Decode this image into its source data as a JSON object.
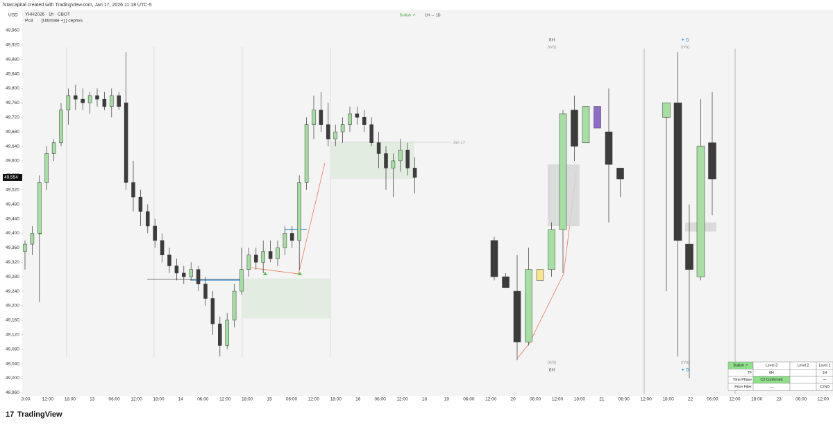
{
  "header": {
    "credit": "fstarcapital created with TradingView.com, Jan 17, 2026 11:18 UTC-5",
    "currency": "USD",
    "symbol": "YHH2026 · 1h · CBOT",
    "indicator": "Po3",
    "indicator_settings": "[Ultimate +] | cephxs"
  },
  "top_legend": {
    "bias": "Bullish ↗",
    "timeframes": "1H → 1D"
  },
  "htf_labels": {
    "six_hour": "6H",
    "daily": "✦ D",
    "na": "(n/a)"
  },
  "session_label": "Jan 17",
  "footer": {
    "logo": "TradingView"
  },
  "chart_data": {
    "type": "candlestick",
    "ylim": [
      48953,
      49975
    ],
    "yticks": [
      {
        "value": 49960,
        "label": "49,960"
      },
      {
        "value": 49920,
        "label": "49,920"
      },
      {
        "value": 49880,
        "label": "49,880"
      },
      {
        "value": 49840,
        "label": "49,840"
      },
      {
        "value": 49800,
        "label": "49,800"
      },
      {
        "value": 49760,
        "label": "49,760"
      },
      {
        "value": 49720,
        "label": "49,720"
      },
      {
        "value": 49680,
        "label": "49,680"
      },
      {
        "value": 49640,
        "label": "49,640"
      },
      {
        "value": 49600,
        "label": "49,600"
      },
      {
        "value": 49560,
        "label": "49,560"
      },
      {
        "value": 49520,
        "label": "49,520"
      },
      {
        "value": 49480,
        "label": "49,480"
      },
      {
        "value": 49440,
        "label": "49,440"
      },
      {
        "value": 49400,
        "label": "49,400"
      },
      {
        "value": 49360,
        "label": "49,360"
      },
      {
        "value": 49320,
        "label": "49,320"
      },
      {
        "value": 49280,
        "label": "49,280"
      },
      {
        "value": 49240,
        "label": "49,240"
      },
      {
        "value": 49200,
        "label": "49,200"
      },
      {
        "value": 49160,
        "label": "49,160"
      },
      {
        "value": 49120,
        "label": "49,120"
      },
      {
        "value": 49080,
        "label": "49,080"
      },
      {
        "value": 49040,
        "label": "49,040"
      },
      {
        "value": 49000,
        "label": "49,000"
      },
      {
        "value": 48960,
        "label": "48,960"
      }
    ],
    "last_price": {
      "value": 49554,
      "label": "49,554"
    },
    "categories": [
      "3:00",
      "12:00",
      "18:00",
      "13",
      "06:00",
      "12:00",
      "18:00",
      "14",
      "06:00",
      "12:00",
      "18:00",
      "15",
      "06:00",
      "12:00",
      "18:00",
      "16",
      "06:00",
      "12:00",
      "18",
      "19",
      "06:00",
      "12:00",
      "20",
      "06:00",
      "12:00",
      "18:00",
      "21",
      "06:00",
      "12:00",
      "18:00",
      "22",
      "06:00",
      "12:00",
      "18:00",
      "23",
      "06:00",
      "12:00"
    ],
    "colors": {
      "up": "#a5dfa1",
      "down": "#3c3c3c",
      "border": "#333333",
      "zone": "#dfeadd",
      "htf_zone": "#d6d6d6"
    },
    "ohlc": [
      [
        49350,
        49380,
        49300,
        49370
      ],
      [
        49370,
        49420,
        49340,
        49400
      ],
      [
        49400,
        49560,
        49210,
        49540
      ],
      [
        49540,
        49640,
        49520,
        49620
      ],
      [
        49620,
        49660,
        49600,
        49650
      ],
      [
        49650,
        49760,
        49640,
        49740
      ],
      [
        49740,
        49800,
        49700,
        49780
      ],
      [
        49780,
        49810,
        49740,
        49770
      ],
      [
        49770,
        49800,
        49740,
        49760
      ],
      [
        49760,
        49790,
        49730,
        49780
      ],
      [
        49780,
        49800,
        49750,
        49770
      ],
      [
        49770,
        49790,
        49740,
        49750
      ],
      [
        49750,
        49800,
        49720,
        49780
      ],
      [
        49780,
        49790,
        49740,
        49750
      ],
      [
        49760,
        49900,
        49520,
        49540
      ],
      [
        49540,
        49600,
        49460,
        49500
      ],
      [
        49500,
        49520,
        49420,
        49460
      ],
      [
        49460,
        49480,
        49400,
        49420
      ],
      [
        49420,
        49440,
        49360,
        49380
      ],
      [
        49380,
        49400,
        49320,
        49340
      ],
      [
        49340,
        49360,
        49290,
        49310
      ],
      [
        49310,
        49330,
        49270,
        49290
      ],
      [
        49290,
        49310,
        49260,
        49280
      ],
      [
        49280,
        49320,
        49270,
        49300
      ],
      [
        49300,
        49310,
        49240,
        49260
      ],
      [
        49260,
        49280,
        49200,
        49220
      ],
      [
        49220,
        49240,
        49120,
        49150
      ],
      [
        49150,
        49170,
        49060,
        49090
      ],
      [
        49090,
        49180,
        49080,
        49160
      ],
      [
        49160,
        49260,
        49140,
        49240
      ],
      [
        49240,
        49360,
        49230,
        49300
      ],
      [
        49300,
        49360,
        49280,
        49340
      ],
      [
        49340,
        49360,
        49300,
        49320
      ],
      [
        49320,
        49380,
        49290,
        49350
      ],
      [
        49350,
        49380,
        49320,
        49330
      ],
      [
        49330,
        49380,
        49310,
        49360
      ],
      [
        49360,
        49420,
        49340,
        49400
      ],
      [
        49400,
        49420,
        49360,
        49380
      ],
      [
        49380,
        49560,
        49300,
        49540
      ],
      [
        49540,
        49720,
        49520,
        49700
      ],
      [
        49700,
        49780,
        49660,
        49740
      ],
      [
        49740,
        49790,
        49680,
        49700
      ],
      [
        49700,
        49760,
        49640,
        49660
      ],
      [
        49660,
        49700,
        49640,
        49680
      ],
      [
        49680,
        49720,
        49650,
        49700
      ],
      [
        49700,
        49750,
        49680,
        49730
      ],
      [
        49730,
        49750,
        49700,
        49720
      ],
      [
        49720,
        49740,
        49680,
        49700
      ],
      [
        49700,
        49720,
        49640,
        49650
      ],
      [
        49650,
        49680,
        49580,
        49620
      ],
      [
        49620,
        49640,
        49520,
        49580
      ],
      [
        49580,
        49620,
        49500,
        49600
      ],
      [
        49600,
        49660,
        49570,
        49630
      ],
      [
        49630,
        49650,
        49560,
        49580
      ],
      [
        49580,
        49610,
        49510,
        49554
      ]
    ],
    "htf_6h_ohlc": [
      [
        49380,
        49390,
        49270,
        49280
      ],
      [
        49280,
        49290,
        49250,
        49250
      ],
      [
        49240,
        49340,
        49050,
        49100
      ],
      [
        49100,
        49360,
        49090,
        49300
      ],
      [
        49270,
        49300,
        49270,
        49300
      ],
      [
        49300,
        49430,
        49280,
        49410
      ],
      [
        49410,
        49740,
        49290,
        49730
      ],
      [
        49740,
        49780,
        49600,
        49640
      ],
      [
        49650,
        49750,
        49650,
        49750
      ],
      [
        49750,
        49750,
        49690,
        49690
      ],
      [
        49680,
        49800,
        49430,
        49590
      ],
      [
        49580,
        49580,
        49500,
        49550
      ]
    ],
    "htf_6h_colors": [
      null,
      null,
      null,
      null,
      "#f7e58a",
      null,
      null,
      null,
      null,
      "#8f6cc8",
      null,
      null
    ],
    "htf_daily_ohlc": [
      [
        49720,
        49760,
        49240,
        49760
      ],
      [
        49760,
        49900,
        49060,
        49380
      ],
      [
        49370,
        49480,
        49000,
        49300
      ],
      [
        49280,
        49770,
        49270,
        49640
      ],
      [
        49650,
        49790,
        49450,
        49550
      ]
    ],
    "zones": [
      [
        49650,
        49550
      ],
      [
        49275,
        49165
      ]
    ],
    "htf_zones": [
      [
        49590,
        49420
      ],
      [
        49430,
        49405
      ]
    ]
  },
  "table": {
    "rows": [
      [
        "Bullish ↗",
        "Level 3",
        "Level 2",
        "Level 1"
      ],
      [
        "TF",
        "6H",
        null,
        "1H"
      ],
      [
        "Time Phase",
        "C2 Confirmed",
        null,
        "—"
      ],
      [
        "Price Filter",
        "—",
        null,
        "C2SD"
      ]
    ]
  }
}
